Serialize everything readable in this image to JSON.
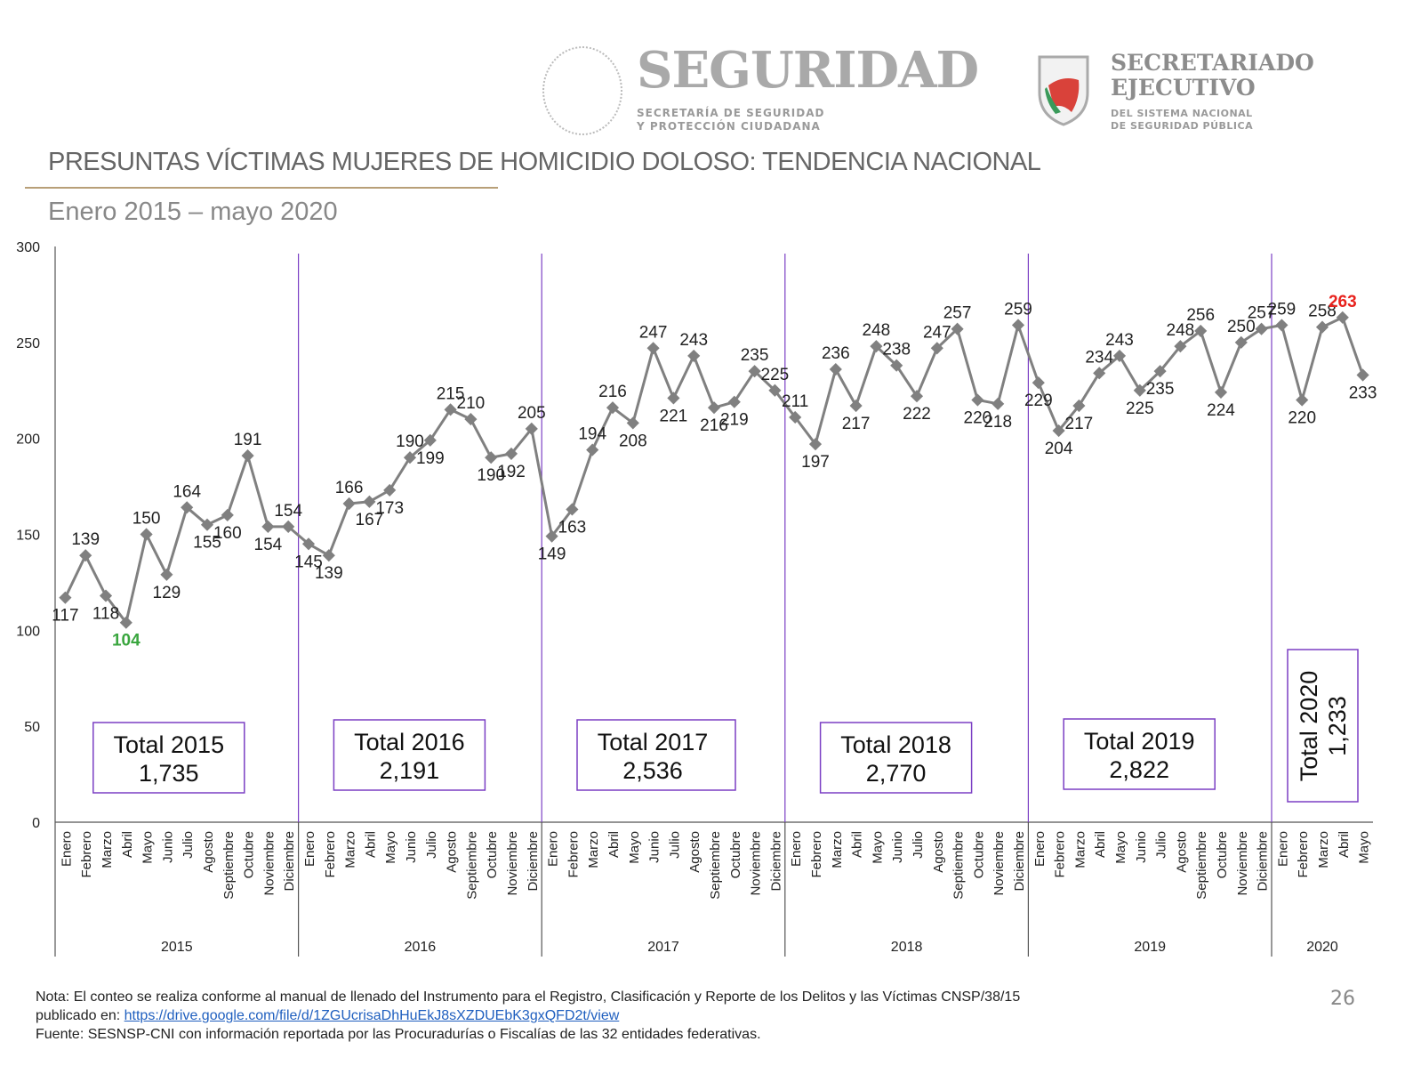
{
  "header": {
    "logo_left": {
      "name": "SEGURIDAD",
      "line1": "SECRETARÍA DE SEGURIDAD",
      "line2": "Y PROTECCIÓN CIUDADANA",
      "seal_text": "ESTADOS UNIDOS MEXICANOS"
    },
    "logo_right": {
      "name1": "SECRETARIADO",
      "name2": "EJECUTIVO",
      "line1": "DEL SISTEMA NACIONAL",
      "line2": "DE SEGURIDAD PÚBLICA"
    }
  },
  "page_title": "PRESUNTAS VÍCTIMAS MUJERES DE HOMICIDIO DOLOSO: TENDENCIA NACIONAL",
  "page_subtitle": "Enero 2015 – mayo 2020",
  "chart_data": {
    "type": "line",
    "ylim": [
      0,
      300
    ],
    "yticks": [
      0,
      50,
      100,
      150,
      200,
      250,
      300
    ],
    "grid": false,
    "line_color": "#808080",
    "divider_color": "#7b3fc4",
    "years": [
      {
        "year": "2015",
        "total_label": "Total 2015",
        "total": "1,735",
        "months": [
          "Enero",
          "Febrero",
          "Marzo",
          "Abril",
          "Mayo",
          "Junio",
          "Julio",
          "Agosto",
          "Septiembre",
          "Octubre",
          "Noviembre",
          "Diciembre"
        ],
        "values": [
          117,
          139,
          118,
          104,
          150,
          129,
          164,
          155,
          160,
          191,
          154,
          154
        ]
      },
      {
        "year": "2016",
        "total_label": "Total 2016",
        "total": "2,191",
        "months": [
          "Enero",
          "Febrero",
          "Marzo",
          "Abril",
          "Mayo",
          "Junio",
          "Julio",
          "Agosto",
          "Septiembre",
          "Octubre",
          "Noviembre",
          "Diciembre"
        ],
        "values": [
          145,
          139,
          166,
          167,
          173,
          190,
          199,
          215,
          210,
          190,
          192,
          205
        ]
      },
      {
        "year": "2017",
        "total_label": "Total 2017",
        "total": "2,536",
        "months": [
          "Enero",
          "Febrero",
          "Marzo",
          "Abril",
          "Mayo",
          "Junio",
          "Julio",
          "Agosto",
          "Septiembre",
          "Octubre",
          "Noviembre",
          "Diciembre"
        ],
        "values": [
          149,
          163,
          194,
          216,
          208,
          247,
          221,
          243,
          216,
          219,
          235,
          225
        ]
      },
      {
        "year": "2018",
        "total_label": "Total 2018",
        "total": "2,770",
        "months": [
          "Enero",
          "Febrero",
          "Marzo",
          "Abril",
          "Mayo",
          "Junio",
          "Julio",
          "Agosto",
          "Septiembre",
          "Octubre",
          "Noviembre",
          "Diciembre"
        ],
        "values": [
          211,
          197,
          236,
          217,
          248,
          238,
          222,
          247,
          257,
          220,
          218,
          259
        ]
      },
      {
        "year": "2019",
        "total_label": "Total 2019",
        "total": "2,822",
        "months": [
          "Enero",
          "Febrero",
          "Marzo",
          "Abril",
          "Mayo",
          "Junio",
          "Julio",
          "Agosto",
          "Septiembre",
          "Octubre",
          "Noviembre",
          "Diciembre"
        ],
        "values": [
          229,
          204,
          217,
          234,
          243,
          225,
          235,
          248,
          256,
          224,
          250,
          257
        ]
      },
      {
        "year": "2020",
        "total_label": "Total 2020",
        "total": "1,233",
        "months": [
          "Enero",
          "Febrero",
          "Marzo",
          "Abril",
          "Mayo"
        ],
        "values": [
          259,
          220,
          258,
          263,
          233
        ]
      }
    ],
    "highlights": [
      {
        "year": "2015",
        "month": "Abril",
        "value": 104,
        "color": "#3aa63f",
        "meaning": "minimum"
      },
      {
        "year": "2020",
        "month": "Abril",
        "value": 263,
        "color": "#e8231e",
        "meaning": "maximum"
      }
    ]
  },
  "footer": {
    "note": "Nota: El conteo se realiza conforme al manual de llenado del Instrumento para el Registro, Clasificación y Reporte de los Delitos y las Víctimas CNSP/38/15",
    "published_prefix": "publicado en: ",
    "link": "https://drive.google.com/file/d/1ZGUcrisaDhHuEkJ8sXZDUEbK3gxQFD2t/view",
    "source": "Fuente: SESNSP-CNI con información reportada por las Procuradurías o Fiscalías de las 32 entidades federativas.",
    "page_number": "26"
  }
}
